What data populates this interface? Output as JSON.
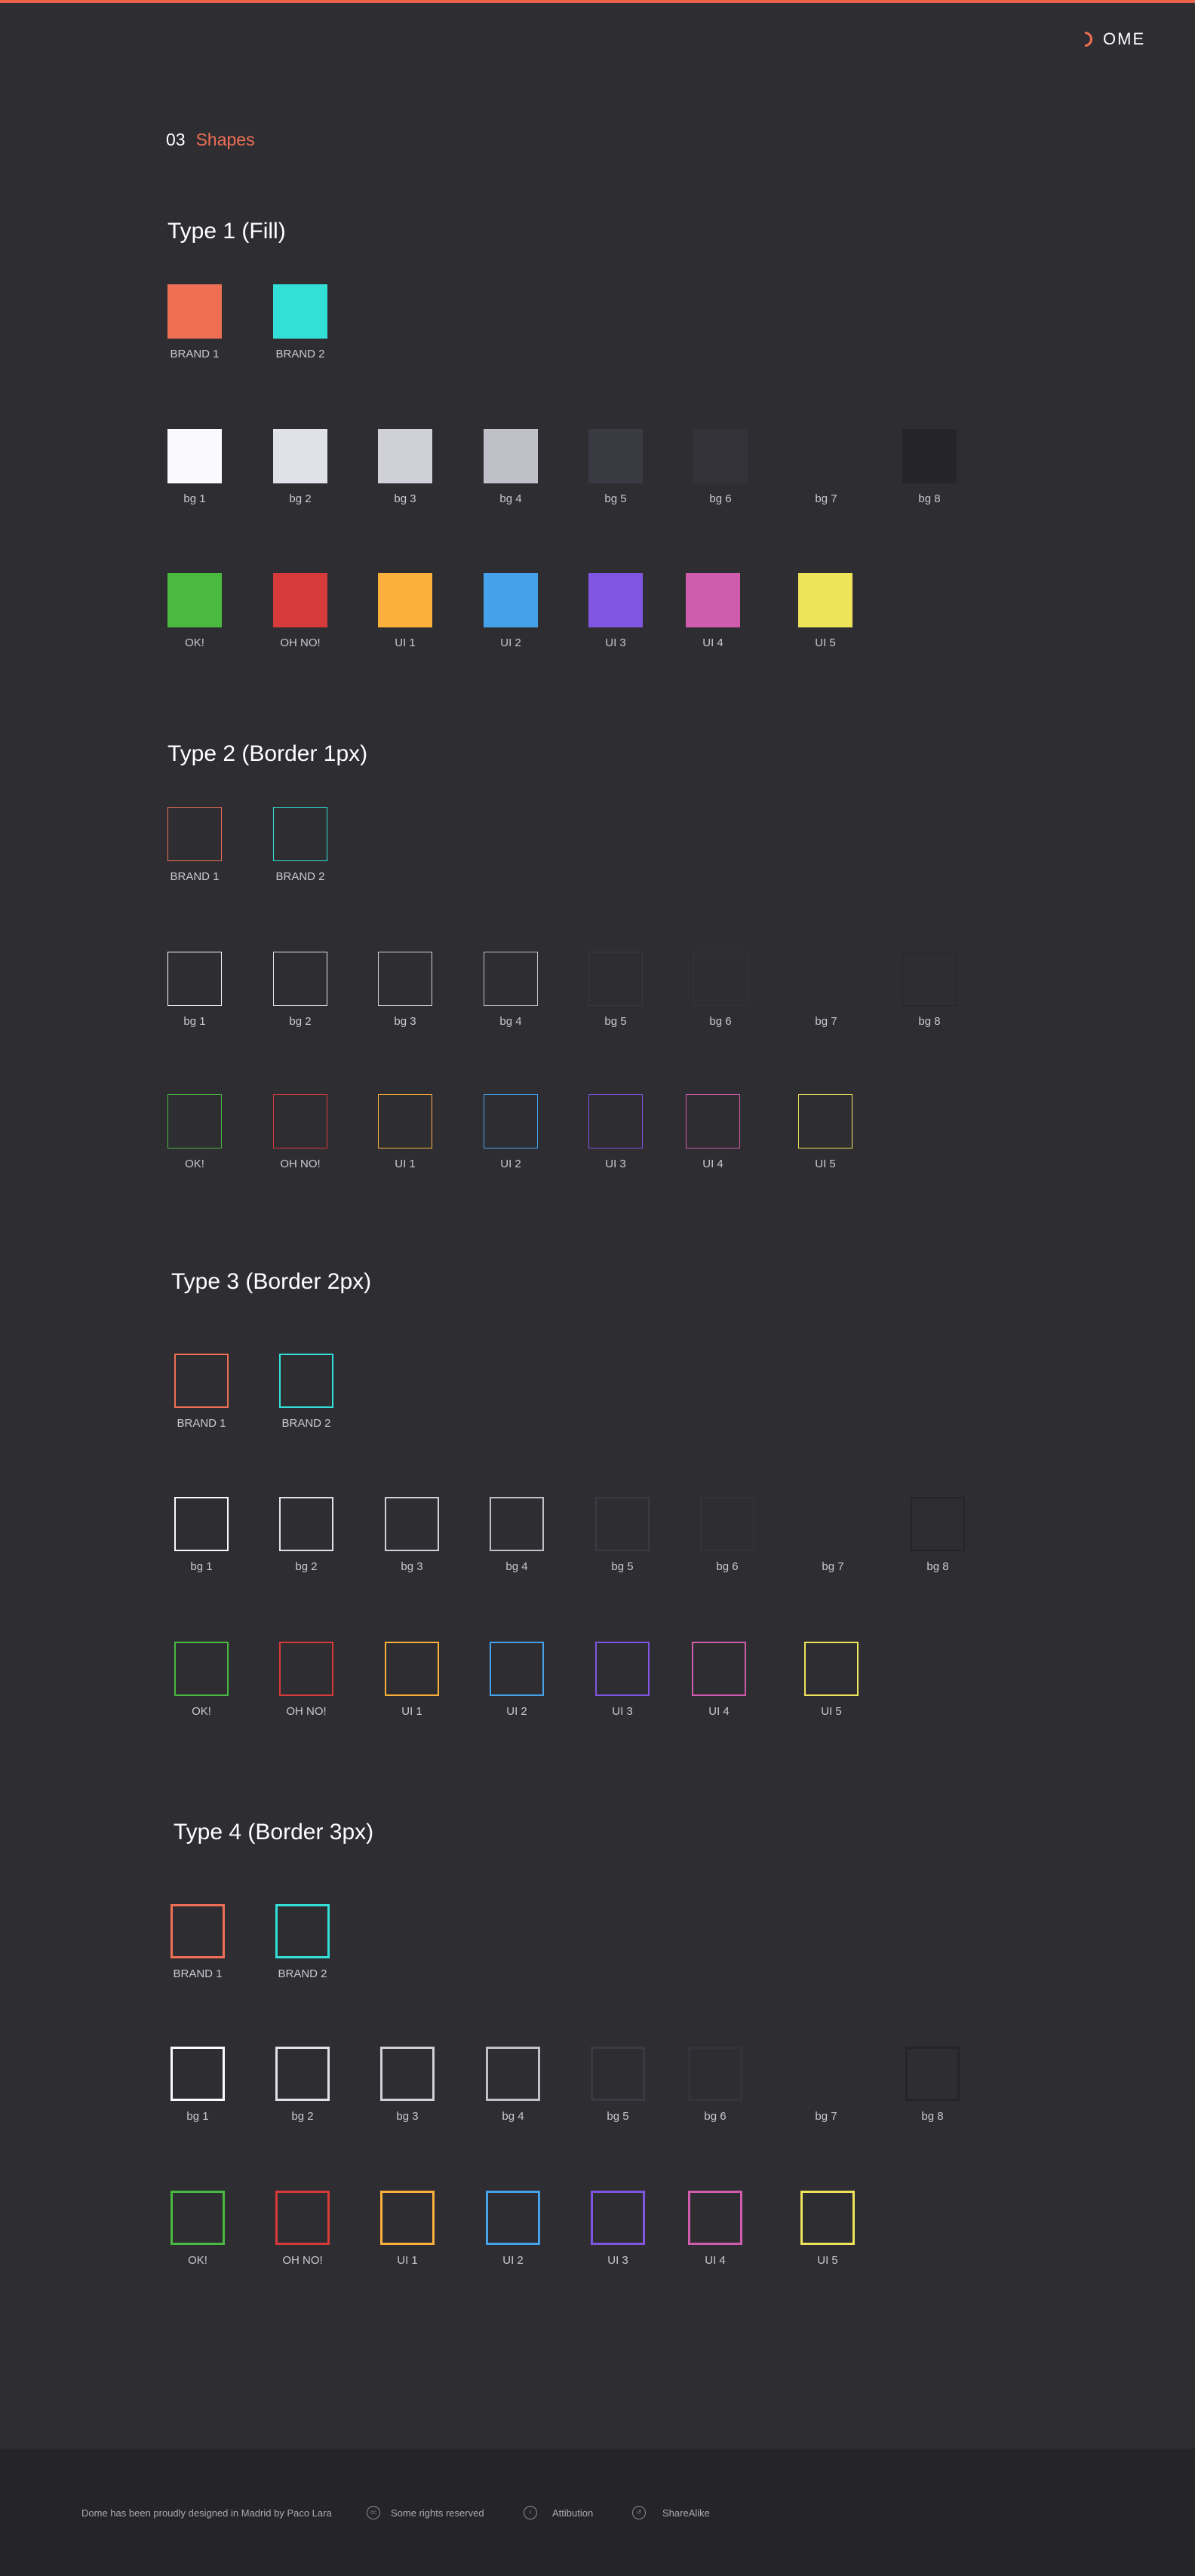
{
  "header": {
    "logo_text": "OME",
    "logo_brand": "DOME",
    "section_number": "03",
    "section_title": "Shapes"
  },
  "colors": {
    "accent": "#e8634a",
    "page_bg": "#2e2d32",
    "footer_bg": "#252529"
  },
  "swatches": {
    "brand": [
      {
        "label": "BRAND 1",
        "color": "#ef6f55"
      },
      {
        "label": "BRAND 2",
        "color": "#33e0d8"
      }
    ],
    "bg": [
      {
        "label": "bg 1",
        "color": "#fafafe"
      },
      {
        "label": "bg 2",
        "color": "#e1e1ea"
      },
      {
        "label": "bg 3",
        "color": "#d0d0d8"
      },
      {
        "label": "bg 4",
        "color": "#c0c0c9"
      },
      {
        "label": "bg 5",
        "color": "#3a3a42"
      },
      {
        "label": "bg 6",
        "color": "#333339"
      },
      {
        "label": "bg 7",
        "color": "#2e2d32"
      },
      {
        "label": "bg 8",
        "color": "#252529"
      }
    ],
    "ui": [
      {
        "label": "OK!",
        "color": "#4ab940"
      },
      {
        "label": "OH NO!",
        "color": "#d63a3a"
      },
      {
        "label": "UI 1",
        "color": "#fbb03b"
      },
      {
        "label": "UI 2",
        "color": "#45a2ea"
      },
      {
        "label": "UI 3",
        "color": "#8055e2"
      },
      {
        "label": "UI 4",
        "color": "#d05cad"
      },
      {
        "label": "UI 5",
        "color": "#efe35a"
      }
    ]
  },
  "sections": [
    {
      "title": "Type 1 (Fill)",
      "style": "fill"
    },
    {
      "title": "Type 2 (Border 1px)",
      "style": "border",
      "border_px": 1
    },
    {
      "title": "Type 3 (Border 2px)",
      "style": "border",
      "border_px": 2
    },
    {
      "title": "Type 4 (Border 3px)",
      "style": "border",
      "border_px": 3
    }
  ],
  "footer": {
    "credit": "Dome has been proudly designed in Madrid by Paco Lara",
    "license": "Some rights reserved",
    "attribution": "Attibution",
    "sharealike": "ShareAlike",
    "icons": [
      "cc-icon",
      "attribution-icon",
      "sharealike-icon"
    ]
  }
}
